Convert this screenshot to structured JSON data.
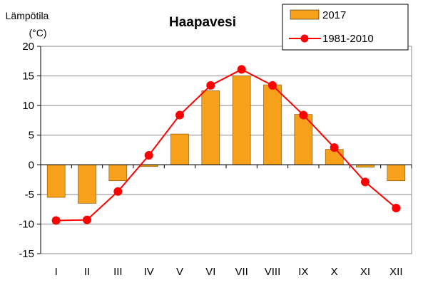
{
  "chart_data": {
    "type": "bar",
    "title": "Haapavesi",
    "ylabel_line1": "Lämpötila",
    "ylabel_line2": "(°C)",
    "xlabel": "",
    "ylim": [
      -15,
      20
    ],
    "yticks": [
      20,
      15,
      10,
      5,
      0,
      -5,
      -10,
      -15
    ],
    "grid": true,
    "legend_position": "top-right",
    "categories": [
      "I",
      "II",
      "III",
      "IV",
      "V",
      "VI",
      "VII",
      "VIII",
      "IX",
      "X",
      "XI",
      "XII"
    ],
    "series": [
      {
        "name": "2017",
        "kind": "bar",
        "color": "#F7A11A",
        "values": [
          -5.5,
          -6.5,
          -2.7,
          -0.3,
          5.2,
          12.5,
          15.0,
          13.5,
          8.5,
          2.6,
          -0.4,
          -2.7
        ]
      },
      {
        "name": "1981-2010",
        "kind": "line",
        "color": "#FF0000",
        "values": [
          -9.4,
          -9.3,
          -4.5,
          1.6,
          8.4,
          13.4,
          16.1,
          13.4,
          8.4,
          2.9,
          -2.9,
          -7.3
        ]
      }
    ]
  }
}
